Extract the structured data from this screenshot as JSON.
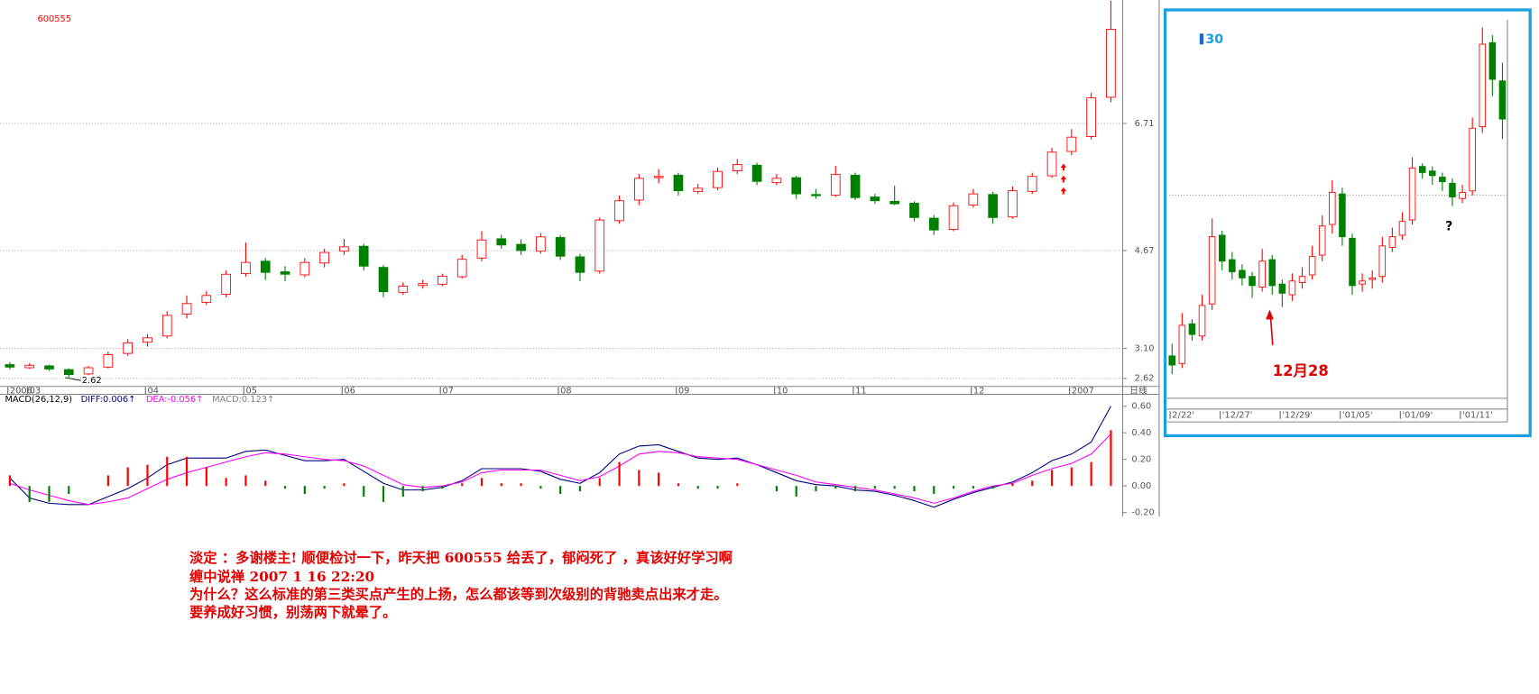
{
  "chart_data": [
    {
      "type": "candlestick",
      "title": "600555",
      "period_label": "日线",
      "annotation": "2.62",
      "up_color": "#ff0000",
      "down_color": "#008000",
      "grid": true,
      "ylim": [
        2.49,
        8.69
      ],
      "yticks": [
        2.62,
        {
          "value": 3.1,
          "label": "3.10"
        },
        4.67,
        6.71
      ],
      "categories": [
        "2006",
        "03",
        null,
        null,
        null,
        null,
        null,
        "04",
        null,
        null,
        null,
        null,
        "05",
        null,
        null,
        null,
        null,
        "06",
        null,
        null,
        null,
        null,
        "07",
        null,
        null,
        null,
        null,
        null,
        "08",
        null,
        null,
        null,
        null,
        null,
        "09",
        null,
        null,
        null,
        null,
        "10",
        null,
        null,
        null,
        "11",
        null,
        null,
        null,
        null,
        null,
        "12",
        null,
        null,
        null,
        null,
        "2007",
        null,
        null
      ],
      "ohlc": [
        [
          2.84,
          2.88,
          2.76,
          2.8
        ],
        [
          2.79,
          2.86,
          2.77,
          2.83
        ],
        [
          2.82,
          2.84,
          2.74,
          2.77
        ],
        [
          2.76,
          2.78,
          2.62,
          2.68
        ],
        [
          2.69,
          2.82,
          2.67,
          2.79
        ],
        [
          2.8,
          3.05,
          2.78,
          3.0
        ],
        [
          3.02,
          3.25,
          2.98,
          3.19
        ],
        [
          3.2,
          3.33,
          3.13,
          3.27
        ],
        [
          3.3,
          3.7,
          3.26,
          3.63
        ],
        [
          3.65,
          3.95,
          3.58,
          3.82
        ],
        [
          3.84,
          4.02,
          3.8,
          3.95
        ],
        [
          3.97,
          4.35,
          3.92,
          4.29
        ],
        [
          4.3,
          4.8,
          4.25,
          4.48
        ],
        [
          4.5,
          4.55,
          4.2,
          4.32
        ],
        [
          4.33,
          4.42,
          4.18,
          4.29
        ],
        [
          4.28,
          4.55,
          4.24,
          4.48
        ],
        [
          4.47,
          4.7,
          4.4,
          4.64
        ],
        [
          4.66,
          4.86,
          4.6,
          4.73
        ],
        [
          4.74,
          4.78,
          4.35,
          4.42
        ],
        [
          4.4,
          4.44,
          3.92,
          4.01
        ],
        [
          4.0,
          4.16,
          3.96,
          4.1
        ],
        [
          4.11,
          4.2,
          4.06,
          4.14
        ],
        [
          4.13,
          4.3,
          4.1,
          4.26
        ],
        [
          4.25,
          4.6,
          4.22,
          4.53
        ],
        [
          4.55,
          4.98,
          4.5,
          4.84
        ],
        [
          4.86,
          4.92,
          4.7,
          4.76
        ],
        [
          4.77,
          4.85,
          4.6,
          4.67
        ],
        [
          4.66,
          4.95,
          4.62,
          4.89
        ],
        [
          4.88,
          4.92,
          4.52,
          4.58
        ],
        [
          4.57,
          4.62,
          4.18,
          4.32
        ],
        [
          4.34,
          5.2,
          4.3,
          5.16
        ],
        [
          5.15,
          5.55,
          5.1,
          5.47
        ],
        [
          5.48,
          5.9,
          5.4,
          5.83
        ],
        [
          5.84,
          5.98,
          5.75,
          5.86
        ],
        [
          5.88,
          5.92,
          5.55,
          5.63
        ],
        [
          5.62,
          5.74,
          5.58,
          5.67
        ],
        [
          5.68,
          6.0,
          5.64,
          5.94
        ],
        [
          5.95,
          6.14,
          5.9,
          6.05
        ],
        [
          6.04,
          6.08,
          5.72,
          5.78
        ],
        [
          5.76,
          5.9,
          5.72,
          5.83
        ],
        [
          5.84,
          5.87,
          5.5,
          5.58
        ],
        [
          5.57,
          5.66,
          5.5,
          5.55
        ],
        [
          5.56,
          6.03,
          5.53,
          5.89
        ],
        [
          5.88,
          5.92,
          5.48,
          5.52
        ],
        [
          5.53,
          5.58,
          5.42,
          5.47
        ],
        [
          5.46,
          5.71,
          5.4,
          5.42
        ],
        [
          5.43,
          5.46,
          5.14,
          5.2
        ],
        [
          5.19,
          5.24,
          4.92,
          5.0
        ],
        [
          5.01,
          5.44,
          4.98,
          5.39
        ],
        [
          5.4,
          5.66,
          5.36,
          5.58
        ],
        [
          5.57,
          5.61,
          5.1,
          5.2
        ],
        [
          5.21,
          5.7,
          5.18,
          5.63
        ],
        [
          5.62,
          5.92,
          5.58,
          5.86
        ],
        [
          5.87,
          6.32,
          5.84,
          6.25
        ],
        [
          6.26,
          6.62,
          6.2,
          6.49
        ],
        [
          6.5,
          7.2,
          6.45,
          7.12
        ],
        [
          7.13,
          8.68,
          7.05,
          8.22
        ]
      ]
    },
    {
      "type": "macd",
      "title": "MACD(26,12,9)",
      "ylim": [
        -0.215,
        0.63
      ],
      "yticks": [
        {
          "value": 0.6,
          "label": "0.60"
        },
        {
          "value": 0.4,
          "label": "0.40"
        },
        {
          "value": 0.2,
          "label": "0.20"
        },
        {
          "value": 0,
          "label": "0.00"
        },
        {
          "value": -0.2,
          "label": "-0.20"
        }
      ],
      "series": [
        {
          "name": "DIFF:0.006↑",
          "color": "#000080",
          "kind": "line",
          "values": [
            0.06,
            -0.09,
            -0.13,
            -0.14,
            -0.14,
            -0.08,
            -0.02,
            0.06,
            0.16,
            0.21,
            0.21,
            0.21,
            0.26,
            0.27,
            0.23,
            0.19,
            0.19,
            0.2,
            0.11,
            0.02,
            -0.03,
            -0.03,
            -0.01,
            0.04,
            0.13,
            0.13,
            0.13,
            0.11,
            0.05,
            0.02,
            0.1,
            0.24,
            0.3,
            0.31,
            0.26,
            0.21,
            0.2,
            0.21,
            0.16,
            0.1,
            0.04,
            0.01,
            0,
            -0.03,
            -0.04,
            -0.07,
            -0.11,
            -0.16,
            -0.1,
            -0.05,
            -0.01,
            0.03,
            0.1,
            0.19,
            0.24,
            0.33,
            0.6
          ]
        },
        {
          "name": "DEA:-0.056↑",
          "color": "#ff00ff",
          "kind": "line",
          "values": [
            0.02,
            -0.03,
            -0.07,
            -0.11,
            -0.14,
            -0.12,
            -0.09,
            -0.02,
            0.05,
            0.1,
            0.14,
            0.18,
            0.22,
            0.25,
            0.24,
            0.22,
            0.2,
            0.19,
            0.15,
            0.08,
            0.01,
            -0.01,
            0,
            0.03,
            0.1,
            0.12,
            0.12,
            0.12,
            0.08,
            0.04,
            0.07,
            0.15,
            0.24,
            0.26,
            0.25,
            0.22,
            0.21,
            0.2,
            0.16,
            0.12,
            0.08,
            0.03,
            0.01,
            -0.01,
            -0.03,
            -0.06,
            -0.09,
            -0.13,
            -0.09,
            -0.04,
            0,
            0.02,
            0.08,
            0.13,
            0.17,
            0.24,
            0.39
          ]
        },
        {
          "name": "MACD:0.123↑",
          "color": "#808080",
          "kind": "bar",
          "up_color": "#ff0000",
          "down_color": "#008000",
          "values": [
            0.08,
            -0.12,
            -0.12,
            -0.06,
            0,
            0.08,
            0.14,
            0.16,
            0.22,
            0.22,
            0.14,
            0.06,
            0.08,
            0.04,
            -0.02,
            -0.06,
            -0.02,
            0.02,
            -0.08,
            -0.12,
            -0.08,
            -0.04,
            -0.02,
            0.02,
            0.06,
            0.02,
            0.02,
            -0.02,
            -0.06,
            -0.04,
            0.06,
            0.18,
            0.12,
            0.1,
            0.02,
            -0.02,
            -0.02,
            0.02,
            0,
            -0.04,
            -0.08,
            -0.04,
            -0.02,
            -0.04,
            -0.02,
            -0.02,
            -0.04,
            -0.06,
            -0.02,
            -0.02,
            -0.02,
            0.02,
            0.04,
            0.12,
            0.14,
            0.18,
            0.42
          ]
        }
      ]
    },
    {
      "type": "candlestick",
      "title": "30",
      "annotations": [
        "12月28",
        "?"
      ],
      "up_color": "#ff0000",
      "down_color": "#008000",
      "ylim": [
        5.0,
        7.4
      ],
      "categories": [
        "2/22'",
        null,
        null,
        null,
        null,
        "'12/27'",
        null,
        null,
        null,
        null,
        null,
        "'12/29'",
        null,
        null,
        null,
        null,
        null,
        "'01/05'",
        null,
        null,
        null,
        null,
        null,
        "'01/09'",
        null,
        null,
        null,
        null,
        null,
        "'01/11'",
        null,
        null,
        null,
        null
      ],
      "ohlc": [
        [
          5.2,
          5.28,
          5.08,
          5.14
        ],
        [
          5.15,
          5.48,
          5.12,
          5.4
        ],
        [
          5.41,
          5.44,
          5.3,
          5.34
        ],
        [
          5.33,
          5.6,
          5.3,
          5.53
        ],
        [
          5.54,
          6.1,
          5.5,
          5.98
        ],
        [
          5.99,
          6.02,
          5.76,
          5.82
        ],
        [
          5.83,
          5.88,
          5.7,
          5.75
        ],
        [
          5.76,
          5.8,
          5.66,
          5.71
        ],
        [
          5.72,
          5.75,
          5.58,
          5.66
        ],
        [
          5.65,
          5.9,
          5.62,
          5.82
        ],
        [
          5.83,
          5.86,
          5.6,
          5.66
        ],
        [
          5.67,
          5.7,
          5.52,
          5.61
        ],
        [
          5.6,
          5.74,
          5.56,
          5.69
        ],
        [
          5.68,
          5.78,
          5.64,
          5.72
        ],
        [
          5.73,
          5.92,
          5.7,
          5.85
        ],
        [
          5.86,
          6.12,
          5.82,
          6.05
        ],
        [
          6.06,
          6.35,
          6.0,
          6.27
        ],
        [
          6.26,
          6.3,
          5.92,
          5.98
        ],
        [
          5.97,
          6.0,
          5.6,
          5.66
        ],
        [
          5.67,
          5.74,
          5.62,
          5.69
        ],
        [
          5.7,
          5.76,
          5.64,
          5.71
        ],
        [
          5.72,
          5.98,
          5.68,
          5.92
        ],
        [
          5.91,
          6.04,
          5.88,
          5.98
        ],
        [
          5.99,
          6.14,
          5.96,
          6.08
        ],
        [
          6.09,
          6.5,
          6.06,
          6.43
        ],
        [
          6.44,
          6.46,
          6.36,
          6.4
        ],
        [
          6.41,
          6.44,
          6.32,
          6.38
        ],
        [
          6.37,
          6.4,
          6.28,
          6.34
        ],
        [
          6.33,
          6.36,
          6.18,
          6.24
        ],
        [
          6.23,
          6.32,
          6.2,
          6.27
        ],
        [
          6.28,
          6.76,
          6.25,
          6.69
        ],
        [
          6.7,
          7.35,
          6.66,
          7.24
        ],
        [
          7.25,
          7.3,
          6.9,
          7.01
        ],
        [
          7.0,
          7.12,
          6.62,
          6.75
        ]
      ]
    }
  ],
  "post": {
    "lines": [
      "淡定 ：多谢楼主! 顺便检讨一下，昨天把 600555 给丢了，郁闷死了 ，真该好好学习啊",
      "缠中说禅 2007 1 16 22:20",
      "为什么？这么标准的第三类买点产生的上扬，怎么都该等到次级别的背驰卖点出来才走。",
      "要养成好习惯，别荡两下就晕了。"
    ]
  }
}
